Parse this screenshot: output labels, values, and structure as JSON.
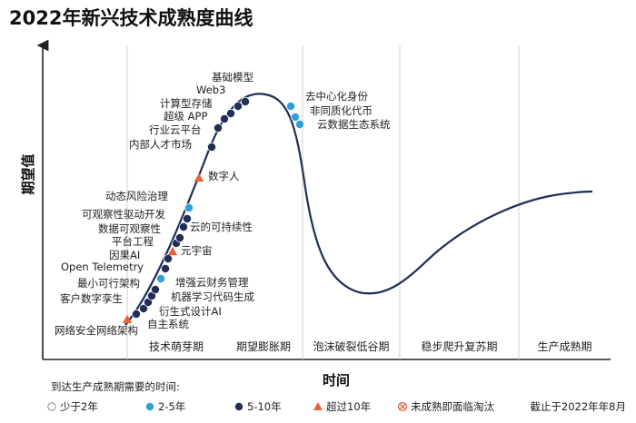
{
  "chart_data": {
    "type": "hype-cycle",
    "title": "2022年新兴技术成熟度曲线",
    "ylabel": "期望值",
    "xlabel": "时间",
    "phases": [
      "技术萌芽期",
      "期望膨胀期",
      "泡沫破裂低谷期",
      "稳步爬升复苏期",
      "生产成熟期"
    ],
    "legend_title": "到达生产成熟期需要的时间:",
    "legend": [
      {
        "key": "lt2",
        "label": "少于2年",
        "symbol": "circle-white"
      },
      {
        "key": "2to5",
        "label": "2-5年",
        "symbol": "circle-blue"
      },
      {
        "key": "5to10",
        "label": "5-10年",
        "symbol": "circle-navy"
      },
      {
        "key": "gt10",
        "label": "超过10年",
        "symbol": "triangle-orange"
      },
      {
        "key": "obsolete",
        "label": "未成熟即面临淘汰",
        "symbol": "circle-x"
      }
    ],
    "note": "截止于2022年年8月",
    "colors": {
      "2to5": "#2e9fd9",
      "5to10": "#1f2d57",
      "gt10": "#e8633a",
      "curve": "#1f2d57",
      "grid": "#d0d0d0"
    },
    "points": [
      {
        "label": "网络安全网络架构",
        "category": "gt10"
      },
      {
        "label": "自主系统",
        "category": "5to10"
      },
      {
        "label": "衍生式设计AI",
        "category": "5to10"
      },
      {
        "label": "客户数字孪生",
        "category": "5to10"
      },
      {
        "label": "机器学习代码生成",
        "category": "5to10"
      },
      {
        "label": "最小可行架构",
        "category": "5to10"
      },
      {
        "label": "增强云财务管理",
        "category": "2to5"
      },
      {
        "label": "Open Telemetry",
        "category": "5to10"
      },
      {
        "label": "因果AI",
        "category": "5to10"
      },
      {
        "label": "元宇宙",
        "category": "gt10"
      },
      {
        "label": "平台工程",
        "category": "5to10"
      },
      {
        "label": "数据可观察性",
        "category": "5to10"
      },
      {
        "label": "云的可持续性",
        "category": "5to10"
      },
      {
        "label": "可观察性驱动开发",
        "category": "5to10"
      },
      {
        "label": "动态风险治理",
        "category": "2to5"
      },
      {
        "label": "数字人",
        "category": "gt10"
      },
      {
        "label": "内部人才市场",
        "category": "5to10"
      },
      {
        "label": "行业云平台",
        "category": "5to10"
      },
      {
        "label": "超级 APP",
        "category": "5to10"
      },
      {
        "label": "计算型存储",
        "category": "5to10"
      },
      {
        "label": "Web3",
        "category": "5to10"
      },
      {
        "label": "基础模型",
        "category": "5to10"
      },
      {
        "label": "去中心化身份",
        "category": "2to5"
      },
      {
        "label": "非同质化代币",
        "category": "2to5"
      },
      {
        "label": "云数据生态系统",
        "category": "2to5"
      }
    ]
  }
}
